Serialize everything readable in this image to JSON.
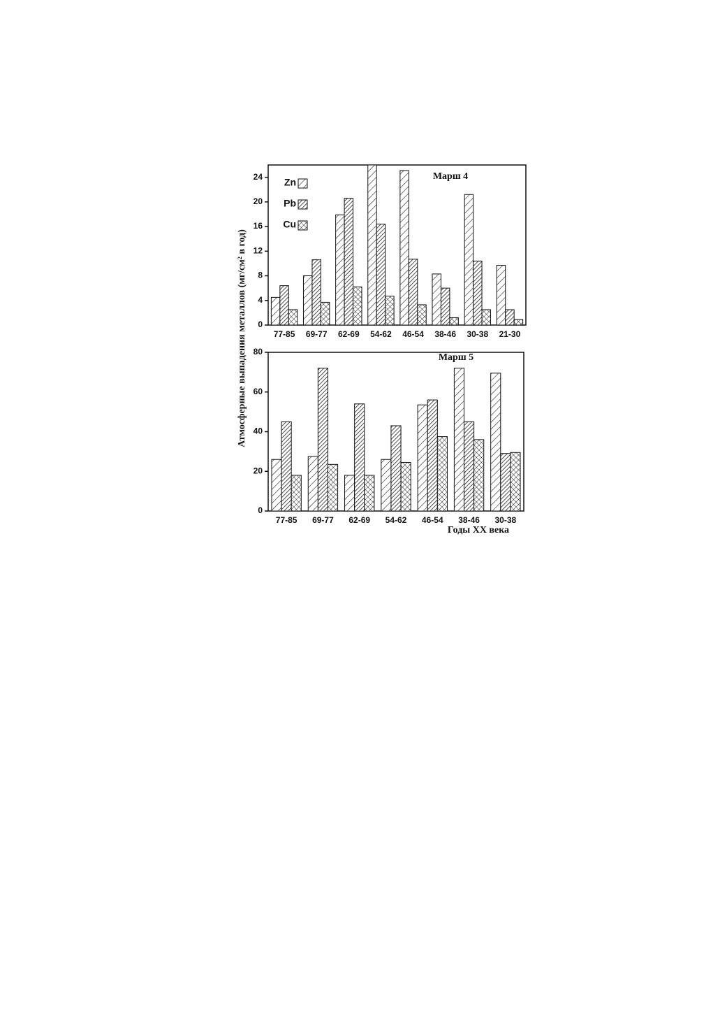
{
  "chart_data": [
    {
      "type": "bar",
      "title": "Марш 4",
      "ylabel": "Атмосферные выпадения металлов (мг/см² в год)",
      "categories": [
        "77-85",
        "69-77",
        "62-69",
        "54-62",
        "46-54",
        "38-46",
        "30-38",
        "21-30"
      ],
      "series": [
        {
          "name": "Zn",
          "pattern": "hatch-sparse",
          "values": [
            4.5,
            8,
            17.9,
            26,
            25.1,
            8.3,
            21.2,
            9.7
          ]
        },
        {
          "name": "Pb",
          "pattern": "hatch-dense",
          "values": [
            6.4,
            10.6,
            20.6,
            16.4,
            10.7,
            6,
            10.4,
            2.5
          ]
        },
        {
          "name": "Cu",
          "pattern": "crosshatch",
          "values": [
            2.5,
            3.7,
            6.2,
            4.7,
            3.3,
            1.2,
            2.5,
            0.9
          ]
        }
      ],
      "ylim": [
        0,
        26
      ],
      "yticks": [
        0,
        4,
        8,
        12,
        16,
        20,
        24
      ],
      "legend": "upper left"
    },
    {
      "type": "bar",
      "title": "Марш 5",
      "xlabel": "Годы XX века",
      "categories": [
        "77-85",
        "69-77",
        "62-69",
        "54-62",
        "46-54",
        "38-46",
        "30-38"
      ],
      "series": [
        {
          "pattern": "hatch-sparse",
          "values": [
            26,
            27.5,
            18,
            26,
            53.5,
            72,
            69.5
          ]
        },
        {
          "pattern": "hatch-dense",
          "values": [
            45,
            72,
            54,
            43,
            56,
            45,
            29
          ]
        },
        {
          "pattern": "crosshatch",
          "values": [
            18,
            23.5,
            18,
            24.5,
            37.5,
            36,
            29.5
          ]
        }
      ],
      "ylim": [
        0,
        80
      ],
      "yticks": [
        0,
        20,
        40,
        60,
        80
      ]
    }
  ]
}
